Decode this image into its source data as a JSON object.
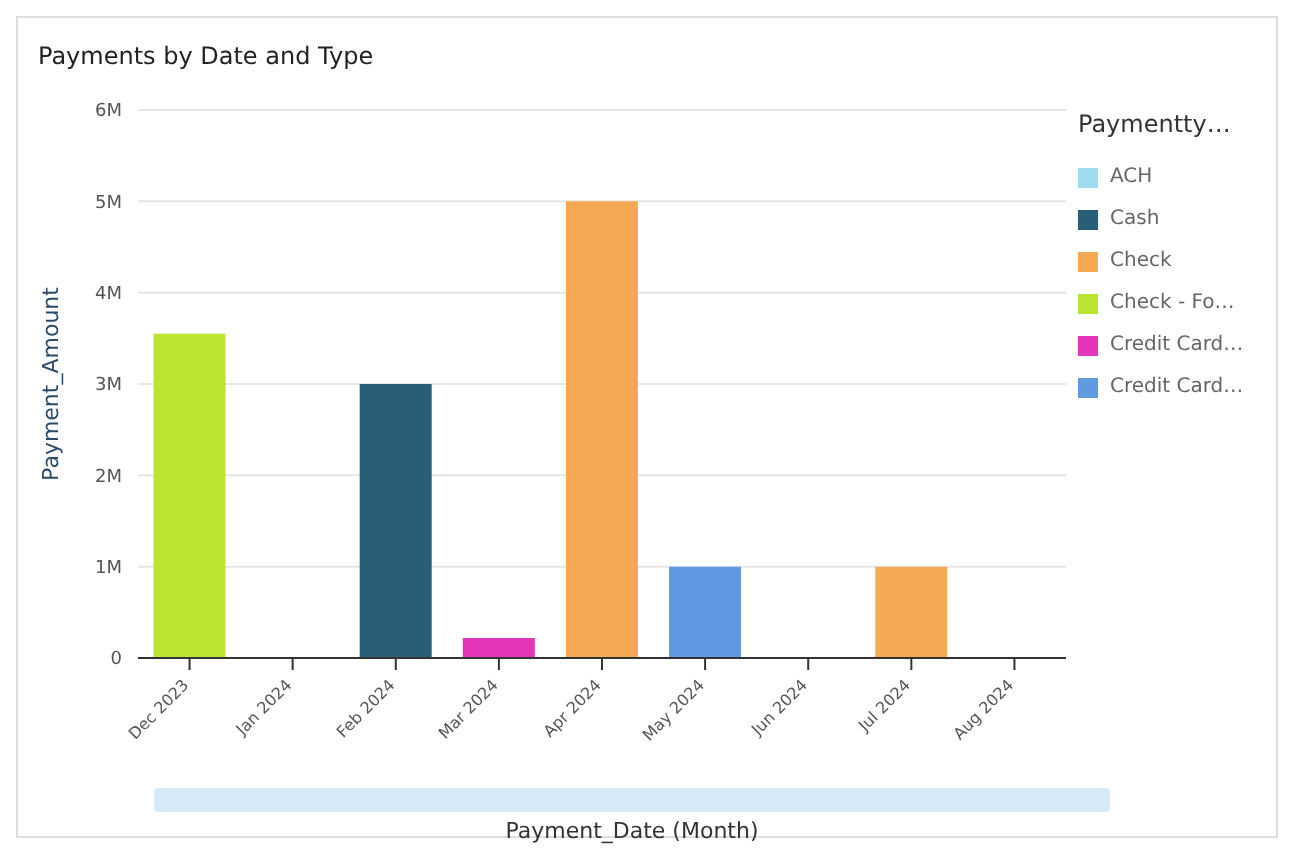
{
  "chart_data": {
    "type": "bar",
    "title": "Payments by Date and Type",
    "xlabel": "Payment_Date (Month)",
    "ylabel": "Payment_Amount",
    "legend_title": "Paymentty…",
    "categories": [
      "Dec 2023",
      "Jan 2024",
      "Feb 2024",
      "Mar 2024",
      "Apr 2024",
      "May 2024",
      "Jun 2024",
      "Jul 2024",
      "Aug 2024"
    ],
    "series": [
      {
        "name": "ACH",
        "color": "#9fdcef",
        "values": [
          null,
          null,
          null,
          null,
          null,
          null,
          null,
          null,
          null
        ]
      },
      {
        "name": "Cash",
        "color": "#2a5d78",
        "values": [
          null,
          null,
          3.0,
          null,
          null,
          null,
          null,
          null,
          null
        ]
      },
      {
        "name": "Check",
        "color": "#f5a955",
        "values": [
          null,
          null,
          null,
          null,
          5.0,
          null,
          null,
          1.0,
          null
        ]
      },
      {
        "name": "Check - Fo…",
        "color": "#bae632",
        "values": [
          3.55,
          null,
          null,
          null,
          null,
          null,
          null,
          null,
          null
        ]
      },
      {
        "name": "Credit Card…",
        "color": "#e535b8",
        "values": [
          null,
          null,
          null,
          0.22,
          null,
          null,
          null,
          null,
          null
        ]
      },
      {
        "name": "Credit Card…",
        "color": "#6198e2",
        "values": [
          null,
          null,
          null,
          null,
          null,
          1.0,
          null,
          null,
          null
        ]
      }
    ],
    "stacked": true,
    "ylim": [
      0,
      6
    ],
    "yticks": [
      {
        "value": 0,
        "label": "0"
      },
      {
        "value": 1,
        "label": "1M"
      },
      {
        "value": 2,
        "label": "2M"
      },
      {
        "value": 3,
        "label": "3M"
      },
      {
        "value": 4,
        "label": "4M"
      },
      {
        "value": 5,
        "label": "5M"
      },
      {
        "value": 6,
        "label": "6M"
      }
    ],
    "grid": "y",
    "legend": "top right"
  }
}
